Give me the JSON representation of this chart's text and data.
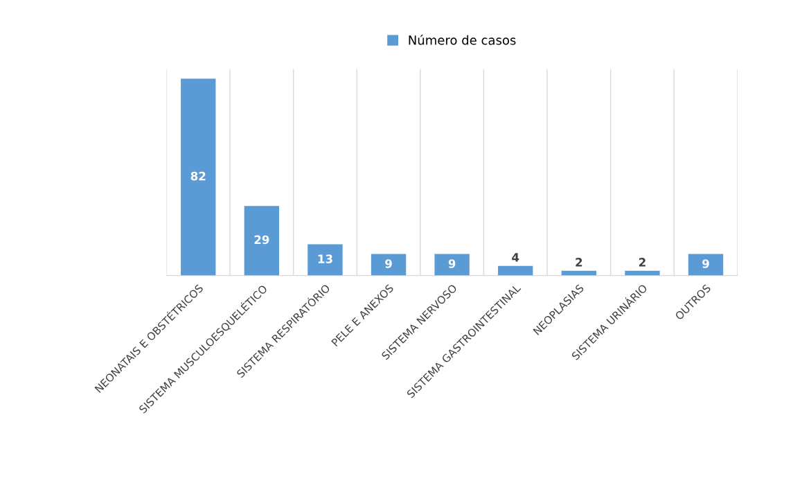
{
  "chart_data": {
    "type": "bar",
    "categories": [
      "NEONATAIS E OBSTÉTRICOS",
      "SISTEMA MUSCULOESQUELÉTICO",
      "SISTEMA RESPIRATÓRIO",
      "PELE E ANEXOS",
      "SISTEMA NERVOSO",
      "SISTEMA GASTROINTESTINAL",
      "NEOPLASIAS",
      "SISTEMA URINÁRIO",
      "OUTROS"
    ],
    "series": [
      {
        "name": "Número de casos",
        "color": "#5b9bd5",
        "values": [
          82,
          29,
          13,
          9,
          9,
          4,
          2,
          2,
          9
        ]
      }
    ],
    "data_labels": true,
    "grid": "x",
    "legend": "top"
  }
}
